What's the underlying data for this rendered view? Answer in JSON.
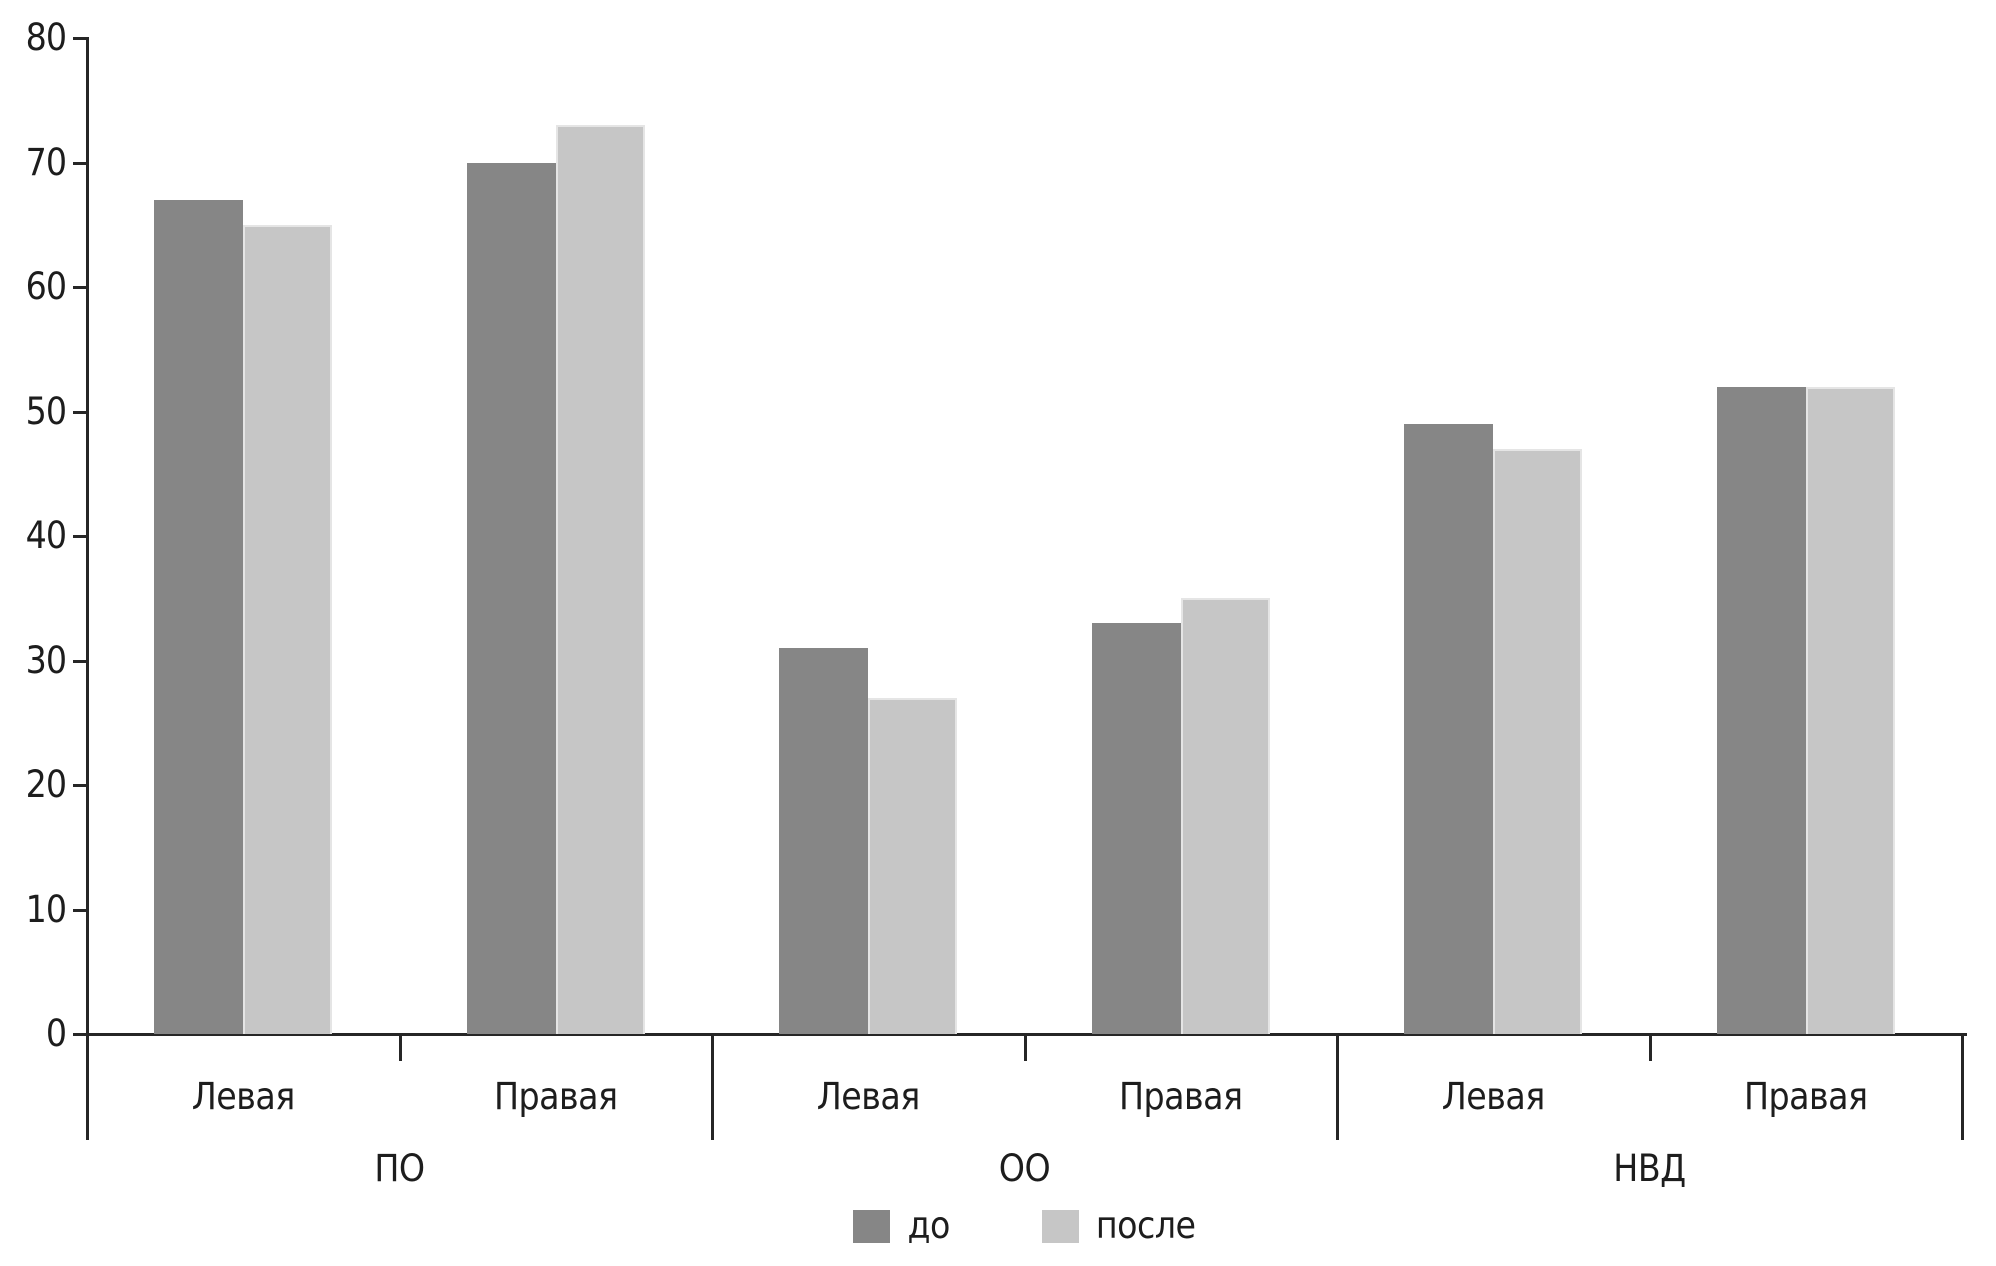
{
  "chart_data": {
    "type": "bar",
    "title": "",
    "xlabel": "",
    "ylabel": "",
    "ylim": [
      0,
      80
    ],
    "yticks": [
      0,
      10,
      20,
      30,
      40,
      50,
      60,
      70,
      80
    ],
    "grid": false,
    "legend_position": "bottom-center",
    "groups": [
      {
        "label": "ПО",
        "categories": [
          "Левая",
          "Правая"
        ]
      },
      {
        "label": "ОО",
        "categories": [
          "Левая",
          "Правая"
        ]
      },
      {
        "label": "НВД",
        "categories": [
          "Левая",
          "Правая"
        ]
      }
    ],
    "series": [
      {
        "name": "до",
        "color": "#868686",
        "values": [
          [
            67,
            70
          ],
          [
            31,
            33
          ],
          [
            49,
            52
          ]
        ]
      },
      {
        "name": "после",
        "color": "#c6c6c6",
        "values": [
          [
            65,
            73
          ],
          [
            27,
            35
          ],
          [
            47,
            52
          ]
        ]
      }
    ]
  },
  "colors": {
    "axis": "#262626",
    "text": "#1d1d1d",
    "series_before": "#868686",
    "series_after": "#c6c6c6",
    "background": "#ffffff"
  }
}
